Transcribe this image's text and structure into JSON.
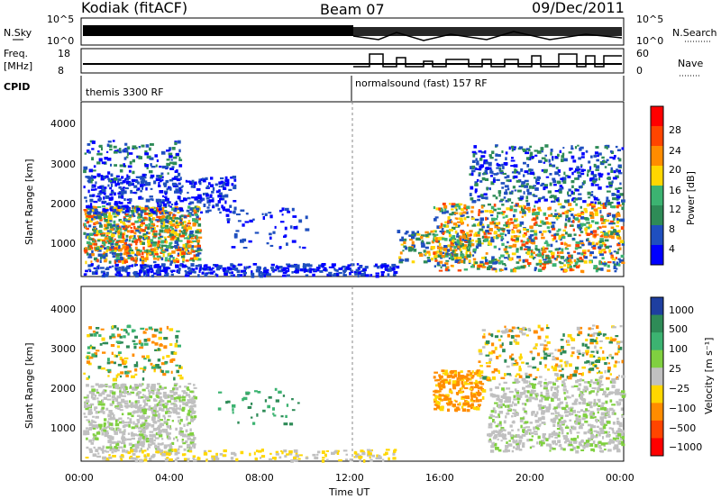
{
  "header": {
    "station": "Kodiak (fitACF)",
    "beam": "Beam 07",
    "date": "09/Dec/2011"
  },
  "left_labels": {
    "nsky": "N.Sky",
    "nsky_hi": "10^5",
    "nsky_lo": "10^0",
    "freq": "Freq.",
    "freq_unit": "[MHz]",
    "freq_hi": "18",
    "freq_lo": "8",
    "cpid": "CPID"
  },
  "right_labels": {
    "nsearch": "N.Search",
    "nsearch_hi": "10^5",
    "nsearch_lo": "10^0",
    "nave": "Nave",
    "nave_hi": "60",
    "nave_lo": "0"
  },
  "cpid": {
    "first": "themis 3300 RF",
    "second": "normalsound (fast) 157 RF"
  },
  "colors": {
    "c1": "#0000ff",
    "c2": "#1f4fbf",
    "c3": "#2e8b57",
    "c4": "#3cb371",
    "c5": "#ffd700",
    "c6": "#ff8c00",
    "c7": "#ff4500",
    "c8": "#ff0000",
    "ground": "#c0c0c0"
  },
  "chart_data": [
    {
      "type": "heatmap",
      "title": "",
      "xlabel": "Time UT",
      "ylabel": "Slant Range [km]",
      "x_ticks": [
        "00:00",
        "04:00",
        "08:00",
        "12:00",
        "16:00",
        "20:00",
        "00:00"
      ],
      "y_ticks": [
        "1000",
        "2000",
        "3000",
        "4000"
      ],
      "ylim": [
        200,
        4500
      ],
      "colorbar_label": "Power [dB]",
      "colorbar_ticks": [
        "28",
        "24",
        "20",
        "16",
        "12",
        "8",
        "4"
      ],
      "colorbar_colors": [
        "#ff0000",
        "#ff4500",
        "#ff8c00",
        "#ffd700",
        "#3cb371",
        "#2e8b57",
        "#1f4fbf",
        "#0000ff"
      ]
    },
    {
      "type": "heatmap",
      "title": "",
      "xlabel": "Time UT",
      "ylabel": "Slant Range [km]",
      "x_ticks": [
        "00:00",
        "04:00",
        "08:00",
        "12:00",
        "16:00",
        "20:00",
        "00:00"
      ],
      "y_ticks": [
        "1000",
        "2000",
        "3000",
        "4000"
      ],
      "ylim": [
        200,
        4500
      ],
      "colorbar_label": "Velocity [m s⁻¹]",
      "colorbar_ticks": [
        "1000",
        "500",
        "100",
        "25",
        "−25",
        "−100",
        "−500",
        "−1000"
      ],
      "colorbar_colors": [
        "#1e3fa0",
        "#2e8b57",
        "#3cb371",
        "#80d040",
        "#c0c0c0",
        "#ffd700",
        "#ff8c00",
        "#ff4500",
        "#ff0000"
      ]
    }
  ]
}
